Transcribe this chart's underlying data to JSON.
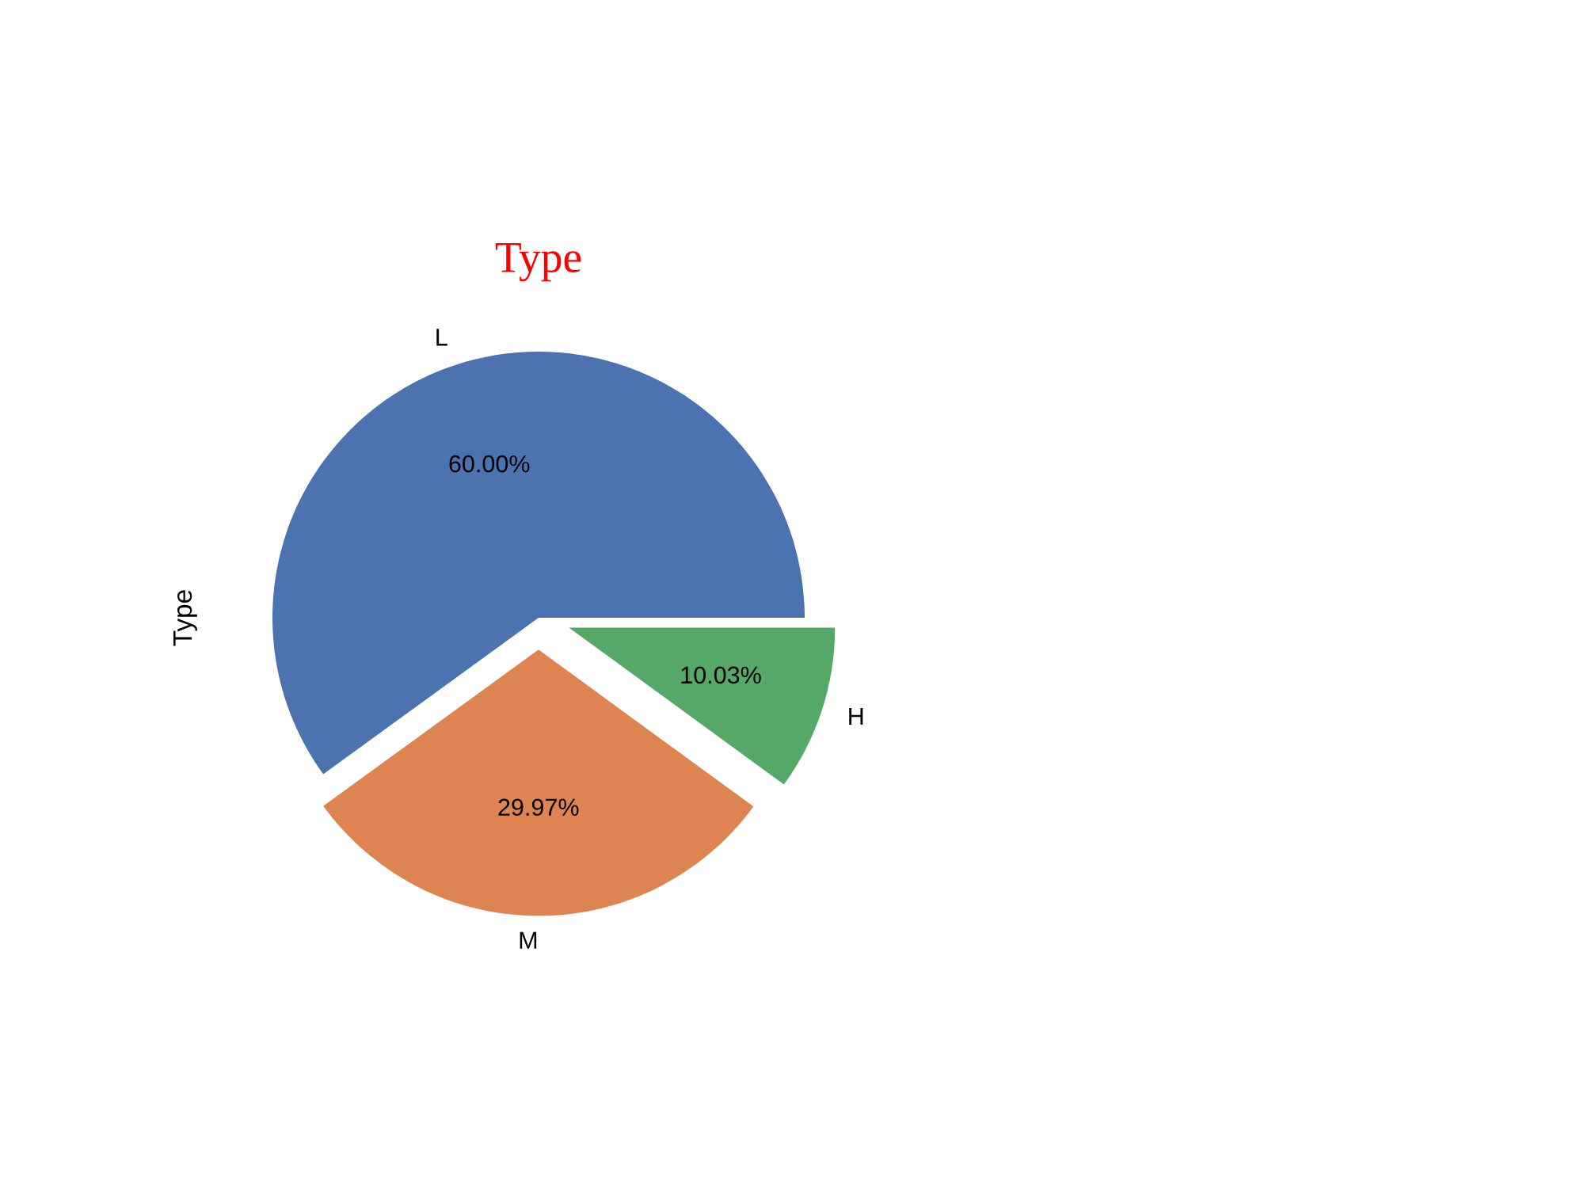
{
  "chart_data": {
    "type": "pie",
    "title": "Type",
    "ylabel": "Type",
    "categories": [
      "L",
      "M",
      "H"
    ],
    "values": [
      60.0,
      29.97,
      10.03
    ],
    "value_labels": [
      "60.00%",
      "29.97%",
      "10.03%"
    ],
    "colors": [
      "#4c72b0",
      "#dd8452",
      "#55a868"
    ]
  }
}
